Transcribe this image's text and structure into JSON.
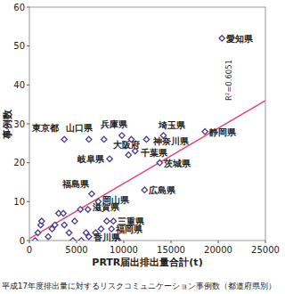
{
  "chart_data": {
    "type": "scatter",
    "title": "平成17年度排出量に対するリスクコミュニケーション事例数（都道府県別）",
    "x_label": "PRTR届出排出量合計(t)",
    "y_label": "事例数",
    "xlim": [
      0,
      25000
    ],
    "ylim": [
      0,
      60
    ],
    "xticks": [
      0,
      5000,
      10000,
      15000,
      20000,
      25000
    ],
    "yticks": [
      0,
      10,
      20,
      30,
      40,
      50,
      60
    ],
    "grid": false,
    "color": "#4b3c8c",
    "marker": "diamond",
    "x": [
      20400,
      18600,
      14200,
      9800,
      3700,
      6300,
      7900,
      10800,
      12400,
      11200,
      10500,
      8500,
      13800,
      12200,
      6600,
      7300,
      6200,
      5400,
      8900,
      8200,
      8700,
      6300,
      600,
      900,
      1200,
      1300,
      2000,
      2400,
      2700,
      3100,
      3600,
      3700,
      4200,
      4600,
      5500,
      6000,
      7000,
      7600,
      9400,
      4800
    ],
    "values": [
      52,
      28,
      27,
      27,
      26,
      26,
      26,
      26,
      26,
      23,
      22,
      21,
      20,
      13,
      12,
      10,
      8,
      8,
      5,
      5,
      3,
      1,
      0,
      2,
      4,
      5,
      1,
      3,
      4,
      7,
      7,
      4,
      2,
      0,
      0,
      2,
      2,
      3,
      0,
      5
    ],
    "point_labels": [
      "愛知県",
      "静岡県",
      "埼玉県",
      "兵庫県",
      "東京都",
      "山口県",
      "大阪府",
      null,
      "神奈川県",
      "千葉県",
      null,
      "岐阜県",
      "茨城県",
      "広島県",
      "福島県",
      "岡山県",
      "滋賀県",
      null,
      "三重県",
      null,
      "福岡県",
      "香川県",
      null,
      null,
      null,
      null,
      null,
      null,
      null,
      null,
      null,
      null,
      null,
      null,
      null,
      null,
      null,
      null,
      null,
      null
    ],
    "trendline": {
      "x": [
        0,
        25000
      ],
      "values": [
        0.5,
        36
      ],
      "color": "#e6457a"
    },
    "annotations": [
      "R²=0.6051"
    ]
  }
}
